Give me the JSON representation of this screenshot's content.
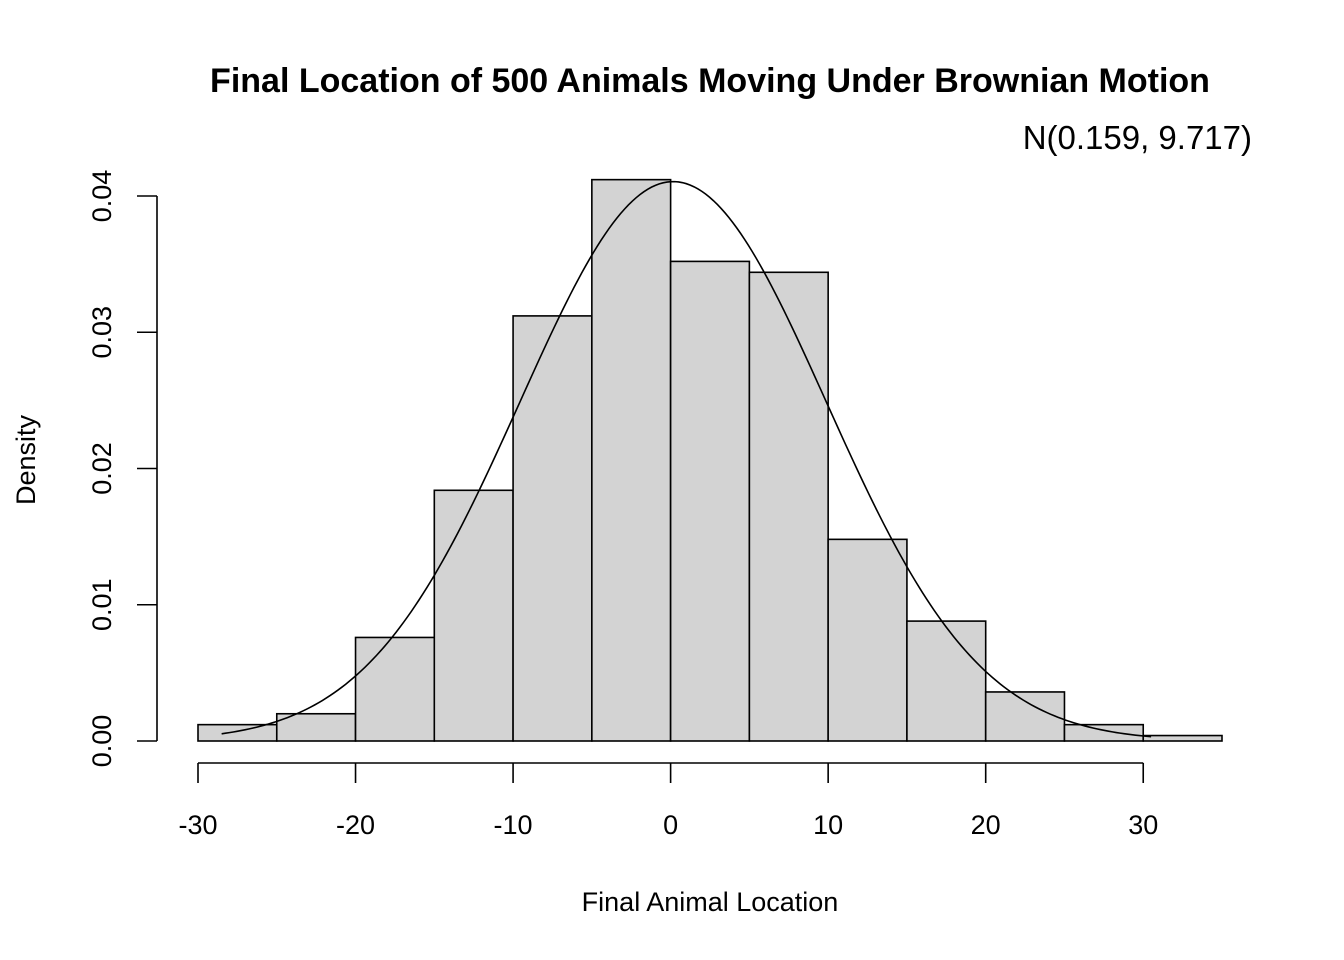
{
  "chart_data": {
    "type": "bar",
    "subtype": "histogram",
    "title": "Final Location of 500 Animals Moving Under Brownian Motion",
    "annotation": "N(0.159, 9.717)",
    "xlabel": "Final Animal Location",
    "ylabel": "Density",
    "bin_edges": [
      -30,
      -25,
      -20,
      -15,
      -10,
      -5,
      0,
      5,
      10,
      15,
      20,
      25,
      30,
      35
    ],
    "values": [
      0.0012,
      0.002,
      0.0076,
      0.0184,
      0.0312,
      0.0412,
      0.0352,
      0.0344,
      0.0148,
      0.0088,
      0.0036,
      0.0012,
      0.0004
    ],
    "bar_color": "#d3d3d3",
    "curve": {
      "type": "normal_density",
      "mean": 0.159,
      "sd": 9.717,
      "from": -28.5,
      "to": 30.5
    },
    "xlim": [
      -30,
      35
    ],
    "ylim": [
      0,
      0.04
    ],
    "x_ticks": [
      -30,
      -20,
      -10,
      0,
      10,
      20,
      30
    ],
    "x_tick_labels": [
      "-30",
      "-20",
      "-10",
      "0",
      "10",
      "20",
      "30"
    ],
    "y_ticks": [
      0,
      0.01,
      0.02,
      0.03,
      0.04
    ],
    "y_tick_labels": [
      "0.00",
      "0.01",
      "0.02",
      "0.03",
      "0.04"
    ],
    "grid": false,
    "legend": "none"
  }
}
